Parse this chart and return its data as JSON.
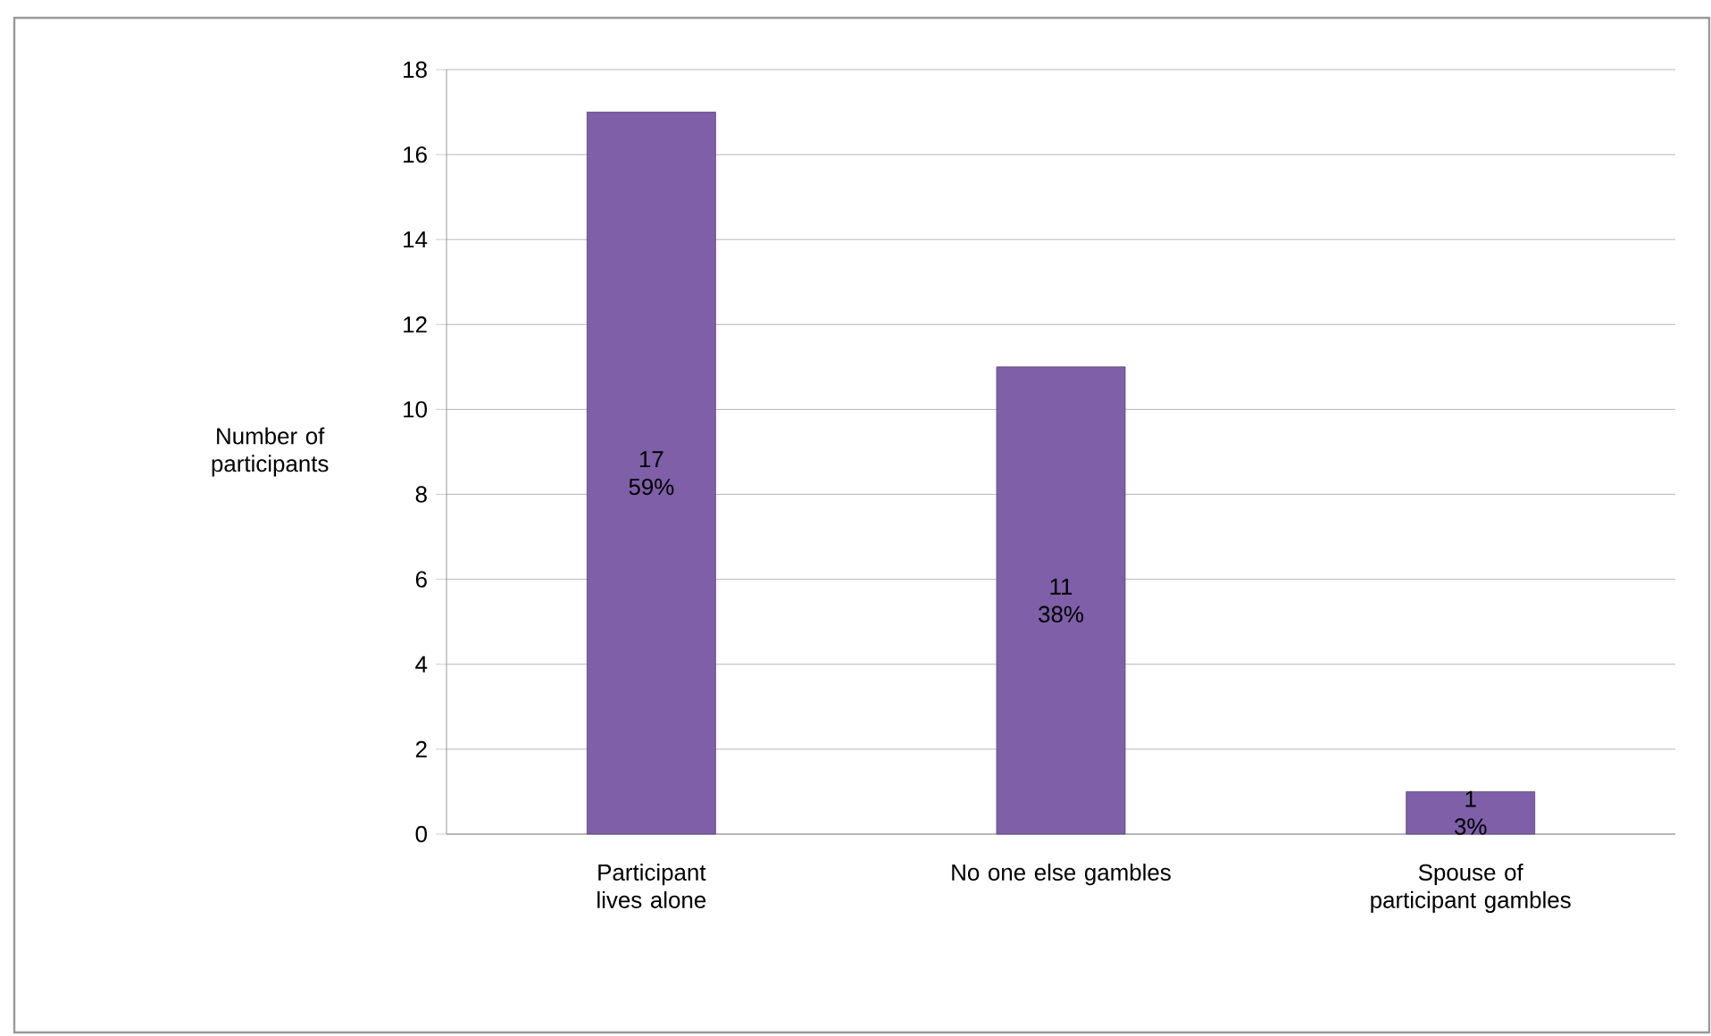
{
  "chart_data": {
    "type": "bar",
    "ylabel": "Number of participants",
    "categories": [
      "Participant lives alone",
      "No one else gambles",
      "Spouse of participant gambles"
    ],
    "values": [
      17,
      11,
      1
    ],
    "value_labels": [
      "17 59%",
      "11 38%",
      "1 3%"
    ],
    "color": "#7f5fa8",
    "ylim": [
      0,
      18
    ],
    "yticks": [
      0,
      2,
      4,
      6,
      8,
      10,
      12,
      14,
      16,
      18
    ],
    "grid": "y"
  }
}
